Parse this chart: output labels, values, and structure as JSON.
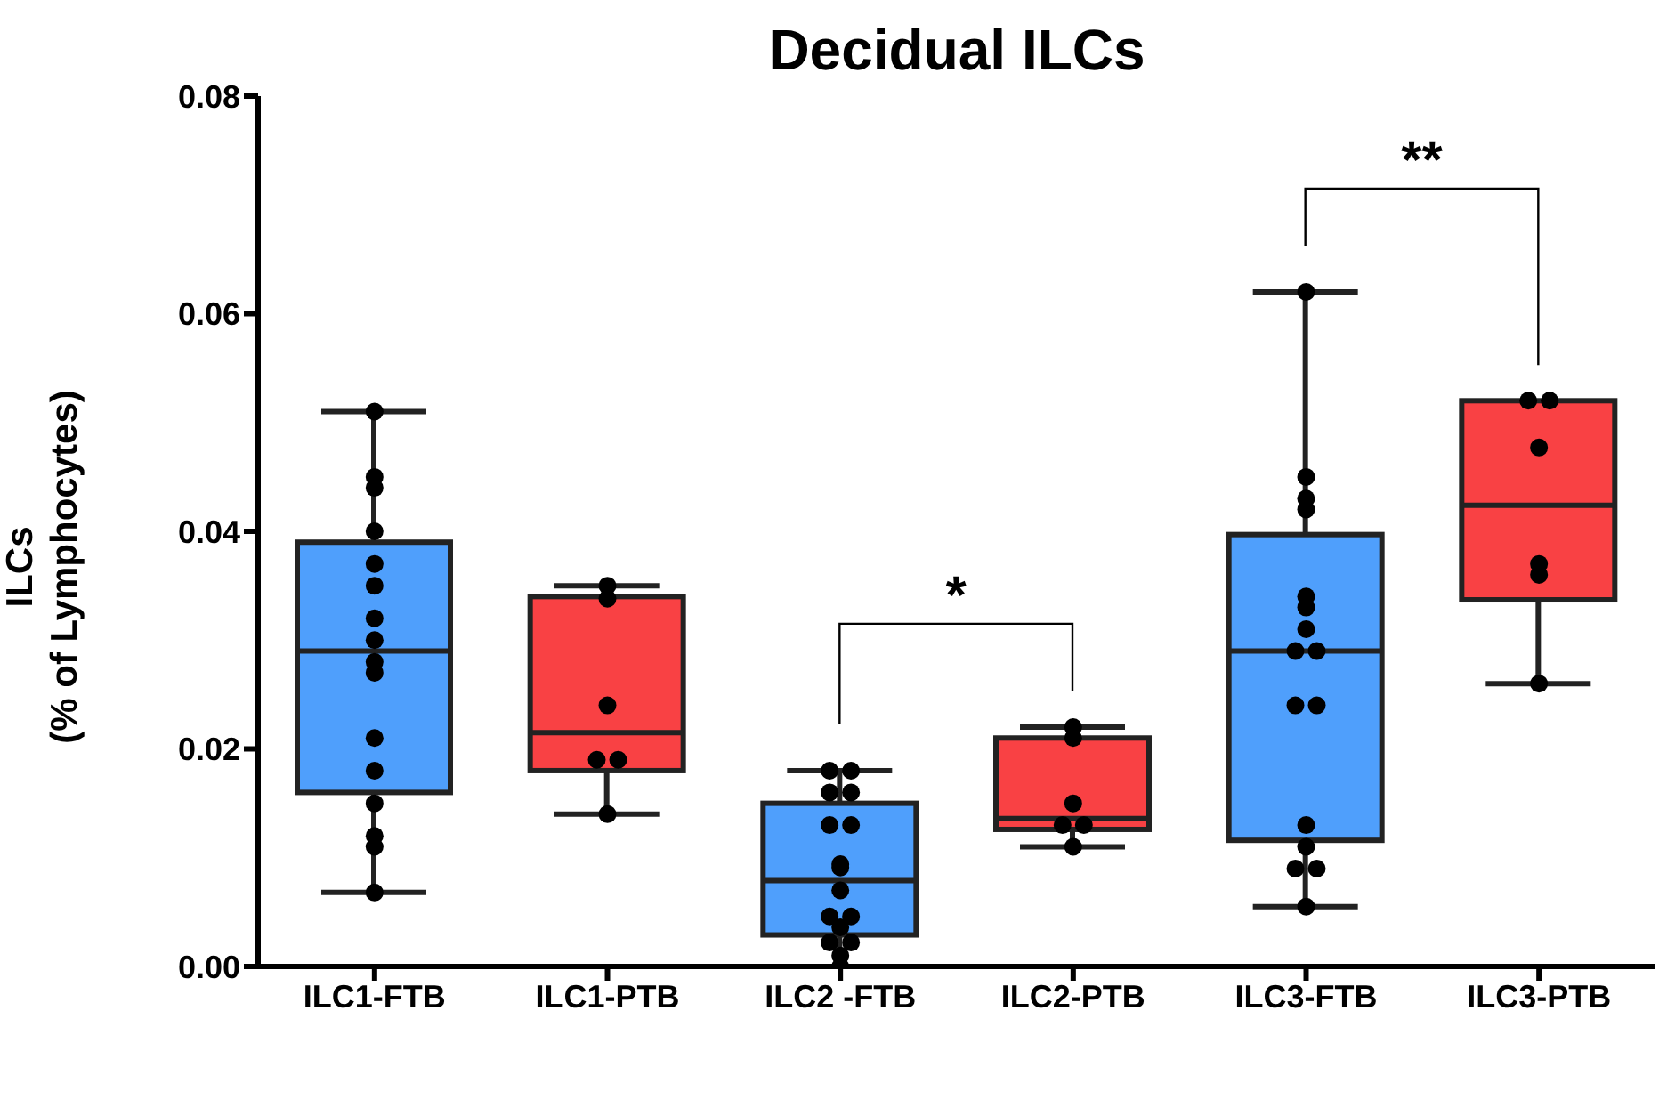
{
  "chart_data": {
    "type": "box",
    "title": "Decidual ILCs",
    "ylabel": "ILCs\n(% of Lymphocytes)",
    "categories": [
      "ILC1-FTB",
      "ILC1-PTB",
      "ILC2 -FTB",
      "ILC2-PTB",
      "ILC3-FTB",
      "ILC3-PTB"
    ],
    "colors": [
      "#4f9ffc",
      "#f94144",
      "#4f9ffc",
      "#f94144",
      "#4f9ffc",
      "#f94144"
    ],
    "boxes": [
      {
        "low": 0.0068,
        "q1": 0.016,
        "median": 0.029,
        "q3": 0.039,
        "high": 0.051
      },
      {
        "low": 0.014,
        "q1": 0.018,
        "median": 0.0215,
        "q3": 0.034,
        "high": 0.035
      },
      {
        "low": 0,
        "q1": 0.0029,
        "median": 0.0079,
        "q3": 0.015,
        "high": 0.018
      },
      {
        "low": 0.011,
        "q1": 0.0126,
        "median": 0.0136,
        "q3": 0.021,
        "high": 0.022
      },
      {
        "low": 0.0055,
        "q1": 0.0116,
        "median": 0.029,
        "q3": 0.0397,
        "high": 0.062
      },
      {
        "low": 0.026,
        "q1": 0.0337,
        "median": 0.0424,
        "q3": 0.052,
        "high": 0.052
      }
    ],
    "series": [
      {
        "type": "scatter",
        "color": "#000000",
        "x": [
          "ILC1-FTB",
          "ILC1-FTB",
          "ILC1-FTB",
          "ILC1-FTB",
          "ILC1-FTB",
          "ILC1-FTB",
          "ILC1-FTB",
          "ILC1-FTB",
          "ILC1-FTB",
          "ILC1-FTB",
          "ILC1-FTB",
          "ILC1-FTB",
          "ILC1-FTB",
          "ILC1-FTB",
          "ILC1-FTB",
          "ILC1-FTB",
          "ILC1-PTB",
          "ILC1-PTB",
          "ILC1-PTB",
          "ILC1-PTB",
          "ILC1-PTB",
          "ILC1-PTB",
          "ILC2 -FTB",
          "ILC2 -FTB",
          "ILC2 -FTB",
          "ILC2 -FTB",
          "ILC2 -FTB",
          "ILC2 -FTB",
          "ILC2 -FTB",
          "ILC2 -FTB",
          "ILC2 -FTB",
          "ILC2 -FTB",
          "ILC2 -FTB",
          "ILC2 -FTB",
          "ILC2 -FTB",
          "ILC2 -FTB",
          "ILC2 -FTB",
          "ILC2 -FTB",
          "ILC2-PTB",
          "ILC2-PTB",
          "ILC2-PTB",
          "ILC2-PTB",
          "ILC2-PTB",
          "ILC2-PTB",
          "ILC3-FTB",
          "ILC3-FTB",
          "ILC3-FTB",
          "ILC3-FTB",
          "ILC3-FTB",
          "ILC3-FTB",
          "ILC3-FTB",
          "ILC3-FTB",
          "ILC3-FTB",
          "ILC3-FTB",
          "ILC3-FTB",
          "ILC3-FTB",
          "ILC3-FTB",
          "ILC3-FTB",
          "ILC3-FTB",
          "ILC3-FTB",
          "ILC3-PTB",
          "ILC3-PTB",
          "ILC3-PTB",
          "ILC3-PTB",
          "ILC3-PTB",
          "ILC3-PTB"
        ],
        "values": [
          0.051,
          0.045,
          0.044,
          0.04,
          0.037,
          0.035,
          0.032,
          0.03,
          0.028,
          0.027,
          0.021,
          0.018,
          0.015,
          0.012,
          0.011,
          0.0068,
          0.035,
          0.0338,
          0.024,
          0.019,
          0.019,
          0.014,
          0.018,
          0.018,
          0.016,
          0.016,
          0.013,
          0.013,
          0.0094,
          0.0091,
          0.007,
          0.0046,
          0.0046,
          0.0036,
          0.0022,
          0.0022,
          0.001,
          0,
          0.022,
          0.021,
          0.015,
          0.013,
          0.013,
          0.011,
          0.062,
          0.045,
          0.043,
          0.042,
          0.034,
          0.033,
          0.031,
          0.029,
          0.029,
          0.024,
          0.024,
          0.013,
          0.011,
          0.009,
          0.009,
          0.0055,
          0.052,
          0.052,
          0.0477,
          0.037,
          0.036,
          0.026
        ]
      }
    ],
    "ylim": [
      0,
      0.08
    ],
    "yticks": [
      {
        "value": 0,
        "label": "0.00"
      },
      {
        "value": 0.02,
        "label": "0.02"
      },
      {
        "value": 0.04,
        "label": "0.04"
      },
      {
        "value": 0.06,
        "label": "0.06"
      },
      {
        "value": 0.08,
        "label": "0.08"
      }
    ],
    "annotations": [
      "*",
      "**"
    ],
    "marker": "circle"
  }
}
